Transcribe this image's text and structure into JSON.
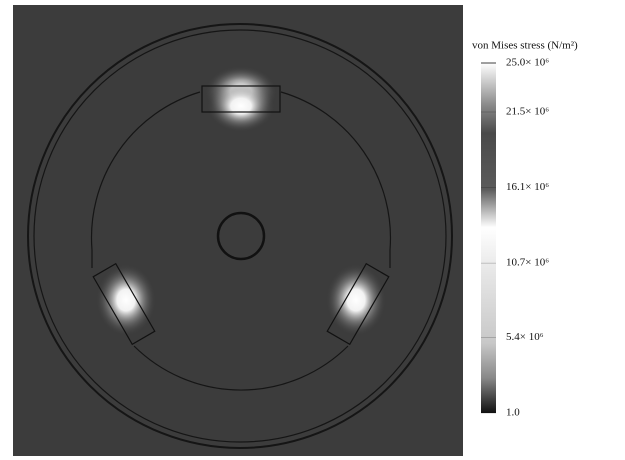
{
  "colorbar": {
    "title": "von Mises stress (N/m²)",
    "ticks": [
      {
        "value": 25000000,
        "label": "25.0× 10⁶"
      },
      {
        "value": 21500000,
        "label": "21.5× 10⁶"
      },
      {
        "value": 16100000,
        "label": "16.1× 10⁶"
      },
      {
        "value": 10700000,
        "label": "10.7× 10⁶"
      },
      {
        "value": 5400000,
        "label": "5.4× 10⁶"
      },
      {
        "value": 1.0,
        "label": "1.0"
      }
    ]
  }
}
